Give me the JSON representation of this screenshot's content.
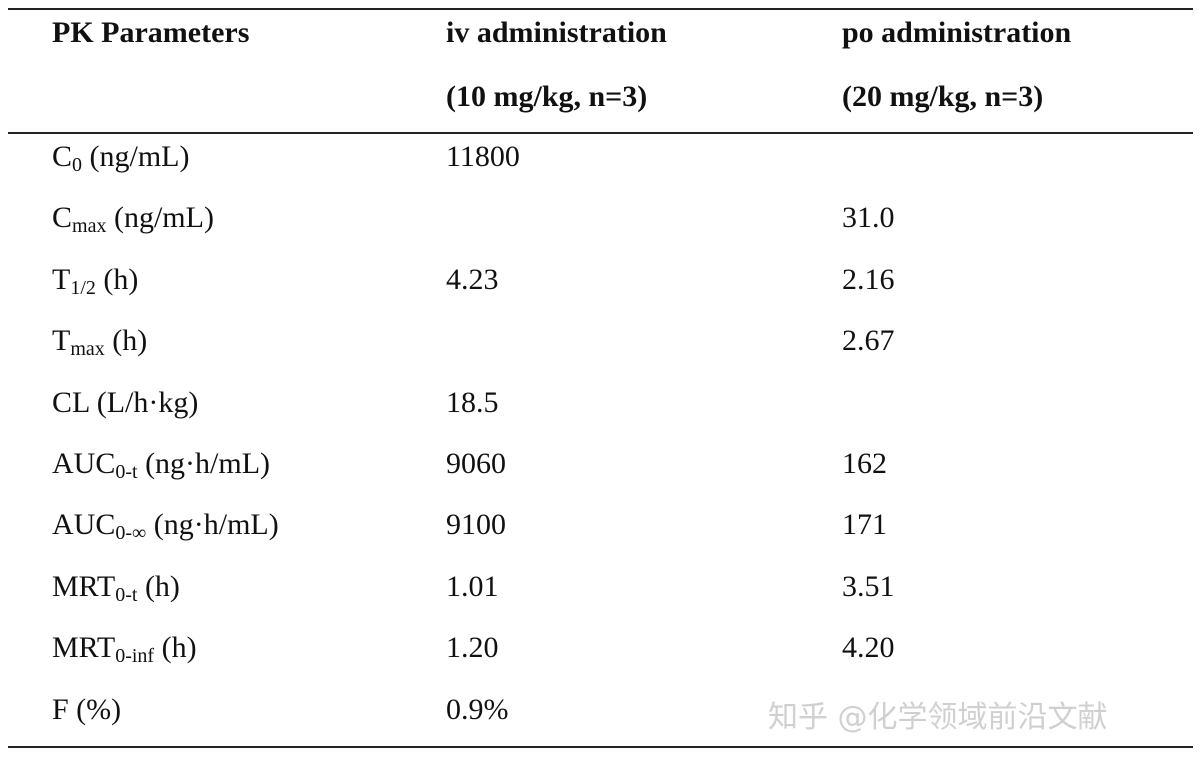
{
  "table": {
    "header": [
      [
        "PK Parameters"
      ],
      [
        "iv administration",
        "(10 mg/kg, n=3)"
      ],
      [
        "po administration",
        "(20 mg/kg, n=3)"
      ]
    ],
    "rows": [
      {
        "label": {
          "main": "C",
          "sub": "0",
          "rest": " (ng/mL)"
        },
        "iv": "11800",
        "po": null
      },
      {
        "label": {
          "main": "C",
          "sub": "max",
          "rest": " (ng/mL)"
        },
        "iv": null,
        "po": "31.0"
      },
      {
        "label": {
          "main": "T",
          "sub": "1/2",
          "rest": " (h)"
        },
        "iv": "4.23",
        "po": "2.16"
      },
      {
        "label": {
          "main": "T",
          "sub": "max",
          "rest": " (h)"
        },
        "iv": null,
        "po": "2.67"
      },
      {
        "label": {
          "main": "CL (L/h·kg)"
        },
        "iv": "18.5",
        "po": null
      },
      {
        "label": {
          "main": "AUC",
          "sub": "0-t",
          "rest": " (ng·h/mL)"
        },
        "iv": "9060",
        "po": "162"
      },
      {
        "label": {
          "main": "AUC",
          "sub": "0-∞",
          "rest": " (ng·h/mL)"
        },
        "iv": "9100",
        "po": "171"
      },
      {
        "label": {
          "main": "MRT",
          "sub": "0-t",
          "rest": " (h)"
        },
        "iv": "1.01",
        "po": "3.51"
      },
      {
        "label": {
          "main": "MRT",
          "sub": "0-inf",
          "rest": " (h)"
        },
        "iv": "1.20",
        "po": "4.20"
      },
      {
        "label": {
          "main": "F (%)"
        },
        "iv": "0.9%",
        "po": null
      }
    ]
  },
  "watermark": "知乎 @化学领域前沿文献"
}
